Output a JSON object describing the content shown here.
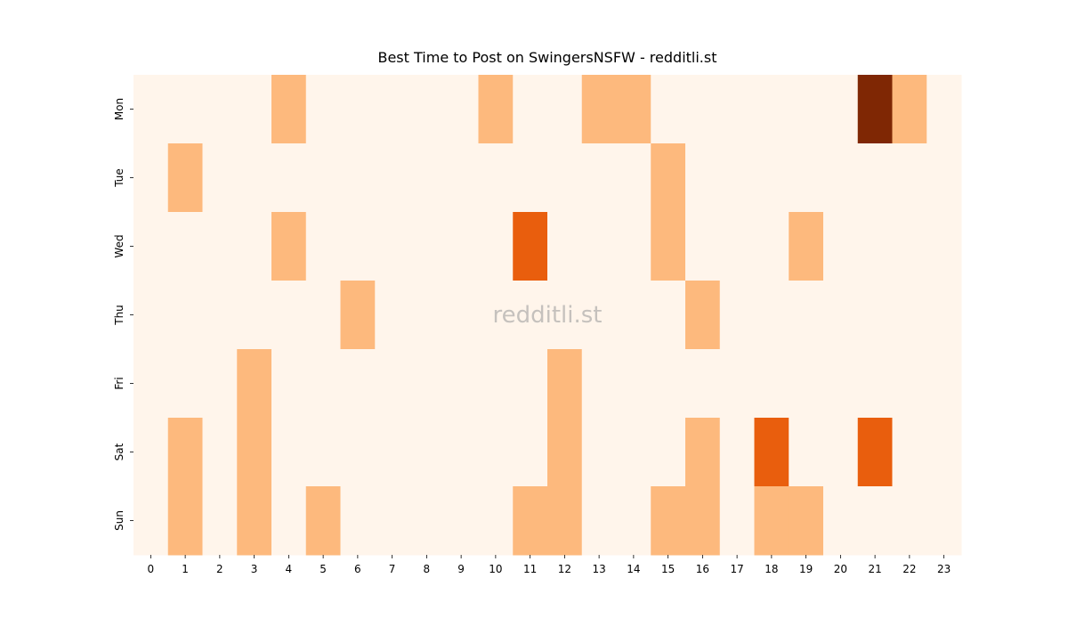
{
  "chart_data": {
    "type": "heatmap",
    "title": "Best Time to Post on SwingersNSFW - redditli.st",
    "watermark": "redditli.st",
    "x": [
      0,
      1,
      2,
      3,
      4,
      5,
      6,
      7,
      8,
      9,
      10,
      11,
      12,
      13,
      14,
      15,
      16,
      17,
      18,
      19,
      20,
      21,
      22,
      23
    ],
    "rows": [
      "Mon",
      "Tue",
      "Wed",
      "Thu",
      "Fri",
      "Sat",
      "Sun"
    ],
    "colormap": "Oranges",
    "vlim": [
      0,
      3
    ],
    "values": [
      [
        0,
        0,
        0,
        0,
        1,
        0,
        0,
        0,
        0,
        0,
        1,
        0,
        0,
        1,
        1,
        0,
        0,
        0,
        0,
        0,
        0,
        3,
        1,
        0
      ],
      [
        0,
        1,
        0,
        0,
        0,
        0,
        0,
        0,
        0,
        0,
        0,
        0,
        0,
        0,
        0,
        1,
        0,
        0,
        0,
        0,
        0,
        0,
        0,
        0
      ],
      [
        0,
        0,
        0,
        0,
        1,
        0,
        0,
        0,
        0,
        0,
        0,
        2,
        0,
        0,
        0,
        1,
        0,
        0,
        0,
        1,
        0,
        0,
        0,
        0
      ],
      [
        0,
        0,
        0,
        0,
        0,
        0,
        1,
        0,
        0,
        0,
        0,
        0,
        0,
        0,
        0,
        0,
        1,
        0,
        0,
        0,
        0,
        0,
        0,
        0
      ],
      [
        0,
        0,
        0,
        1,
        0,
        0,
        0,
        0,
        0,
        0,
        0,
        0,
        1,
        0,
        0,
        0,
        0,
        0,
        0,
        0,
        0,
        0,
        0,
        0
      ],
      [
        0,
        1,
        0,
        1,
        0,
        0,
        0,
        0,
        0,
        0,
        0,
        0,
        1,
        0,
        0,
        0,
        1,
        0,
        2,
        0,
        0,
        2,
        0,
        0
      ],
      [
        0,
        1,
        0,
        1,
        0,
        1,
        0,
        0,
        0,
        0,
        0,
        1,
        1,
        0,
        0,
        1,
        1,
        0,
        1,
        1,
        0,
        0,
        0,
        0
      ]
    ]
  }
}
